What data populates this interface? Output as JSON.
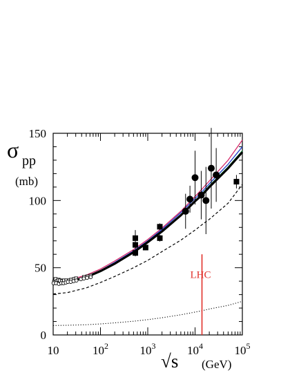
{
  "chart_data": {
    "type": "scatter",
    "title": "",
    "ylabel_symbol": "σ",
    "ylabel_sub": "pp",
    "yunit": "(mb)",
    "xlabel_root": "√s",
    "xunit": "(GeV)",
    "xscale": "log",
    "xlim": [
      10,
      100000
    ],
    "ylim": [
      0,
      150
    ],
    "grid": false,
    "yticks": [
      0,
      50,
      100,
      150
    ],
    "xticks": [
      {
        "value": 10,
        "base": "10",
        "exp": ""
      },
      {
        "value": 100,
        "base": "10",
        "exp": "2"
      },
      {
        "value": 1000,
        "base": "10",
        "exp": "3"
      },
      {
        "value": 10000,
        "base": "10",
        "exp": "4"
      },
      {
        "value": 100000,
        "base": "10",
        "exp": "5"
      }
    ],
    "annotation": {
      "text": "LHC",
      "x": 14000,
      "y_from": 0,
      "y_to": 60,
      "color": "#e0302a"
    },
    "points": {
      "open_squares": [
        {
          "x": 10.5,
          "y": 39.5
        },
        {
          "x": 11.2,
          "y": 41.5
        },
        {
          "x": 12.0,
          "y": 40.0
        },
        {
          "x": 13.0,
          "y": 41.0
        },
        {
          "x": 14.0,
          "y": 40.5
        },
        {
          "x": 15.5,
          "y": 40.0
        },
        {
          "x": 17.0,
          "y": 40.5
        },
        {
          "x": 19.0,
          "y": 40.5
        },
        {
          "x": 21.5,
          "y": 40.5
        },
        {
          "x": 24.0,
          "y": 41.0
        },
        {
          "x": 27.5,
          "y": 41.5
        },
        {
          "x": 30.5,
          "y": 42.0
        },
        {
          "x": 45.0,
          "y": 43.0
        },
        {
          "x": 53.0,
          "y": 43.5
        },
        {
          "x": 62.0,
          "y": 44.0
        }
      ],
      "open_circles": [
        {
          "x": 10.2,
          "y": 38.5
        },
        {
          "x": 11.5,
          "y": 38.5
        },
        {
          "x": 13.2,
          "y": 38.0
        },
        {
          "x": 14.8,
          "y": 38.5
        },
        {
          "x": 16.5,
          "y": 38.5
        },
        {
          "x": 18.5,
          "y": 39.0
        },
        {
          "x": 20.5,
          "y": 39.5
        },
        {
          "x": 23.5,
          "y": 39.5
        },
        {
          "x": 27.0,
          "y": 40.0
        },
        {
          "x": 31.0,
          "y": 40.5
        },
        {
          "x": 38.5,
          "y": 41.5
        },
        {
          "x": 44.5,
          "y": 42.0
        },
        {
          "x": 52.0,
          "y": 42.5
        },
        {
          "x": 62.0,
          "y": 43.0
        }
      ],
      "filled_squares": [
        {
          "x": 546,
          "y": 61,
          "err": 2.5
        },
        {
          "x": 546,
          "y": 67,
          "err": 3
        },
        {
          "x": 546,
          "y": 72,
          "err": 6
        },
        {
          "x": 900,
          "y": 65,
          "err": 2
        },
        {
          "x": 1800,
          "y": 72,
          "err": 2.5
        },
        {
          "x": 1800,
          "y": 80.5,
          "err": 2.5
        },
        {
          "x": 75000,
          "y": 114,
          "err": 5
        }
      ],
      "filled_circles": [
        {
          "x": 6300,
          "y": 92,
          "err": 13
        },
        {
          "x": 7800,
          "y": 101,
          "err": 10
        },
        {
          "x": 10000,
          "y": 117,
          "err": 20
        },
        {
          "x": 13500,
          "y": 104,
          "err": 18
        },
        {
          "x": 17000,
          "y": 100,
          "err": 25
        },
        {
          "x": 22000,
          "y": 124,
          "err": 30
        },
        {
          "x": 28000,
          "y": 119,
          "err": 20
        }
      ]
    },
    "series": [
      {
        "style": "thick",
        "color": "#000000",
        "x": [
          10,
          20,
          50,
          100,
          200,
          500,
          1000,
          2000,
          5000,
          10000,
          14000,
          20000,
          50000,
          100000
        ],
        "y": [
          38.5,
          39,
          43,
          47.5,
          53,
          61.5,
          69,
          77,
          89,
          99.5,
          104,
          110,
          124,
          136
        ]
      },
      {
        "style": "thin",
        "color": "#009a3d",
        "x": [
          10,
          20,
          50,
          100,
          200,
          500,
          1000,
          2000,
          5000,
          10000,
          14000,
          20000,
          50000,
          100000
        ],
        "y": [
          38,
          38.5,
          42.5,
          47,
          53,
          62,
          69.5,
          77.5,
          89.5,
          100,
          105,
          111,
          125,
          137
        ]
      },
      {
        "style": "thin",
        "color": "#1e3cc8",
        "x": [
          10,
          20,
          50,
          100,
          200,
          500,
          1000,
          2000,
          5000,
          10000,
          14000,
          20000,
          50000,
          100000
        ],
        "y": [
          38.5,
          39.5,
          43.5,
          48,
          54,
          62.5,
          70,
          78.5,
          91,
          101.5,
          106.5,
          112.5,
          127,
          140
        ]
      },
      {
        "style": "thin",
        "color": "#d42a6a",
        "x": [
          10,
          20,
          50,
          100,
          200,
          500,
          1000,
          2000,
          5000,
          10000,
          14000,
          20000,
          50000,
          100000
        ],
        "y": [
          39.5,
          40.5,
          44.5,
          49,
          55,
          63.5,
          71,
          79.5,
          92,
          103,
          108.5,
          114.5,
          130,
          145
        ]
      },
      {
        "style": "dashed",
        "color": "#000000",
        "x": [
          10,
          20,
          50,
          100,
          200,
          500,
          1000,
          2000,
          5000,
          10000,
          14000,
          20000,
          50000,
          100000
        ],
        "y": [
          30.5,
          31.5,
          35,
          39,
          43.5,
          50,
          55.5,
          62,
          70.5,
          78,
          82,
          86,
          98,
          112
        ]
      },
      {
        "style": "dotted",
        "color": "#000000",
        "x": [
          10,
          20,
          50,
          100,
          200,
          500,
          1000,
          2000,
          5000,
          10000,
          14000,
          20000,
          50000,
          100000
        ],
        "y": [
          7,
          7.2,
          7.6,
          8.2,
          9,
          10.2,
          11.4,
          12.8,
          15,
          17,
          18,
          19.3,
          22,
          25
        ]
      }
    ]
  }
}
